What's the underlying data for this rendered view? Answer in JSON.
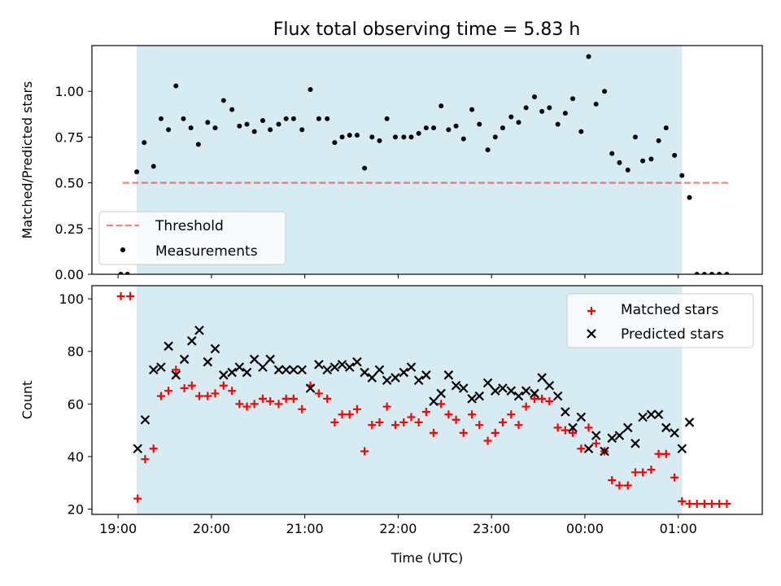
{
  "title": "Flux total observing time = 5.83 h",
  "colors": {
    "shade": "#add8e6",
    "threshold": "#ff0000",
    "matched": "#ff0000",
    "predicted": "#000000",
    "measurements": "#000000"
  },
  "chart_data": [
    {
      "type": "scatter",
      "title": "Flux total observing time = 5.83 h",
      "xlabel": "",
      "ylabel": "Matched/Predicted stars",
      "xlim": [
        18.72,
        25.9
      ],
      "ylim": [
        0,
        1.25
      ],
      "x_ticks": [
        {
          "x": 19,
          "label": "19:00"
        },
        {
          "x": 20,
          "label": "20:00"
        },
        {
          "x": 21,
          "label": "21:00"
        },
        {
          "x": 22,
          "label": "22:00"
        },
        {
          "x": 23,
          "label": "23:00"
        },
        {
          "x": 24,
          "label": "00:00"
        },
        {
          "x": 25,
          "label": "01:00"
        }
      ],
      "y_ticks": [
        {
          "y": 0.0,
          "label": "0.00"
        },
        {
          "y": 0.25,
          "label": "0.25"
        },
        {
          "y": 0.5,
          "label": "0.50"
        },
        {
          "y": 0.75,
          "label": "0.75"
        },
        {
          "y": 1.0,
          "label": "1.00"
        }
      ],
      "shaded_span": [
        19.2,
        25.04
      ],
      "legend_position": "lower-left",
      "series": [
        {
          "name": "Threshold",
          "style": "dashed-line",
          "x": [
            19.05,
            25.55
          ],
          "y": [
            0.5,
            0.5
          ]
        },
        {
          "name": "Measurements",
          "style": "dot",
          "x": [
            19.03,
            19.1,
            19.2,
            19.28,
            19.38,
            19.46,
            19.54,
            19.62,
            19.7,
            19.78,
            19.86,
            19.96,
            20.04,
            20.13,
            20.22,
            20.3,
            20.38,
            20.46,
            20.55,
            20.63,
            20.72,
            20.8,
            20.88,
            20.97,
            21.06,
            21.15,
            21.24,
            21.32,
            21.4,
            21.48,
            21.56,
            21.64,
            21.72,
            21.8,
            21.88,
            21.97,
            22.06,
            22.14,
            22.22,
            22.3,
            22.38,
            22.46,
            22.54,
            22.62,
            22.7,
            22.79,
            22.87,
            22.96,
            23.04,
            23.12,
            23.21,
            23.29,
            23.37,
            23.46,
            23.54,
            23.62,
            23.71,
            23.79,
            23.87,
            23.96,
            24.04,
            24.12,
            24.21,
            24.29,
            24.37,
            24.46,
            24.54,
            24.62,
            24.71,
            24.79,
            24.87,
            24.96,
            25.04,
            25.12,
            25.2,
            25.28,
            25.36,
            25.44,
            25.52
          ],
          "y": [
            0.0,
            0.0,
            0.56,
            0.72,
            0.59,
            0.85,
            0.79,
            1.03,
            0.85,
            0.8,
            0.71,
            0.83,
            0.8,
            0.95,
            0.9,
            0.81,
            0.82,
            0.78,
            0.84,
            0.79,
            0.82,
            0.85,
            0.85,
            0.79,
            1.01,
            0.85,
            0.85,
            0.72,
            0.75,
            0.76,
            0.76,
            0.58,
            0.75,
            0.73,
            0.85,
            0.75,
            0.75,
            0.75,
            0.77,
            0.8,
            0.8,
            0.92,
            0.79,
            0.81,
            0.74,
            0.9,
            0.82,
            0.68,
            0.75,
            0.8,
            0.86,
            0.83,
            0.91,
            0.97,
            0.89,
            0.91,
            0.82,
            0.88,
            0.96,
            0.78,
            1.19,
            0.93,
            1.0,
            0.66,
            0.61,
            0.57,
            0.75,
            0.62,
            0.63,
            0.73,
            0.8,
            0.65,
            0.54,
            0.42,
            0.0,
            0.0,
            0.0,
            0.0,
            0.0
          ]
        }
      ]
    },
    {
      "type": "scatter",
      "title": "",
      "xlabel": "Time (UTC)",
      "ylabel": "Count",
      "xlim": [
        18.72,
        25.9
      ],
      "ylim": [
        18,
        105
      ],
      "x_ticks": [
        {
          "x": 19,
          "label": "19:00"
        },
        {
          "x": 20,
          "label": "20:00"
        },
        {
          "x": 21,
          "label": "21:00"
        },
        {
          "x": 22,
          "label": "22:00"
        },
        {
          "x": 23,
          "label": "23:00"
        },
        {
          "x": 24,
          "label": "00:00"
        },
        {
          "x": 25,
          "label": "01:00"
        }
      ],
      "y_ticks": [
        {
          "y": 20,
          "label": "20"
        },
        {
          "y": 40,
          "label": "40"
        },
        {
          "y": 60,
          "label": "60"
        },
        {
          "y": 80,
          "label": "80"
        },
        {
          "y": 100,
          "label": "100"
        }
      ],
      "shaded_span": [
        19.2,
        25.04
      ],
      "legend_position": "upper-right",
      "series": [
        {
          "name": "Matched stars",
          "style": "plus",
          "x": [
            19.03,
            19.13,
            19.21,
            19.29,
            19.38,
            19.46,
            19.54,
            19.62,
            19.71,
            19.79,
            19.87,
            19.96,
            20.04,
            20.13,
            20.22,
            20.3,
            20.38,
            20.46,
            20.55,
            20.63,
            20.72,
            20.8,
            20.88,
            20.97,
            21.06,
            21.15,
            21.24,
            21.32,
            21.4,
            21.48,
            21.56,
            21.64,
            21.72,
            21.8,
            21.88,
            21.97,
            22.06,
            22.14,
            22.22,
            22.3,
            22.38,
            22.46,
            22.54,
            22.62,
            22.7,
            22.79,
            22.87,
            22.96,
            23.04,
            23.12,
            23.21,
            23.29,
            23.37,
            23.46,
            23.54,
            23.62,
            23.71,
            23.79,
            23.87,
            23.96,
            24.04,
            24.12,
            24.21,
            24.29,
            24.37,
            24.46,
            24.54,
            24.62,
            24.71,
            24.79,
            24.87,
            24.96,
            25.04,
            25.12,
            25.2,
            25.28,
            25.36,
            25.44,
            25.52
          ],
          "y": [
            101,
            101,
            24,
            39,
            43,
            63,
            65,
            73,
            66,
            67,
            63,
            63,
            64,
            67,
            65,
            60,
            59,
            60,
            62,
            61,
            60,
            62,
            62,
            58,
            67,
            64,
            62,
            53,
            56,
            56,
            58,
            42,
            52,
            53,
            59,
            52,
            53,
            55,
            53,
            57,
            49,
            60,
            56,
            54,
            49,
            56,
            52,
            46,
            49,
            53,
            56,
            52,
            59,
            62,
            62,
            61,
            51,
            50,
            49,
            43,
            51,
            45,
            42,
            31,
            29,
            29,
            34,
            34,
            35,
            41,
            41,
            32,
            23,
            22,
            22,
            22,
            22,
            22,
            22
          ]
        },
        {
          "name": "Predicted stars",
          "style": "x",
          "x": [
            19.21,
            19.29,
            19.38,
            19.46,
            19.54,
            19.62,
            19.71,
            19.79,
            19.87,
            19.96,
            20.04,
            20.13,
            20.22,
            20.3,
            20.38,
            20.46,
            20.55,
            20.63,
            20.72,
            20.8,
            20.88,
            20.97,
            21.06,
            21.15,
            21.24,
            21.32,
            21.4,
            21.48,
            21.56,
            21.64,
            21.72,
            21.8,
            21.88,
            21.97,
            22.06,
            22.14,
            22.22,
            22.3,
            22.38,
            22.46,
            22.54,
            22.62,
            22.7,
            22.79,
            22.87,
            22.96,
            23.04,
            23.12,
            23.21,
            23.29,
            23.37,
            23.46,
            23.54,
            23.62,
            23.71,
            23.79,
            23.87,
            23.96,
            24.04,
            24.12,
            24.21,
            24.29,
            24.37,
            24.46,
            24.54,
            24.62,
            24.71,
            24.79,
            24.87,
            24.96,
            25.04,
            25.12
          ],
          "y": [
            43,
            54,
            73,
            74,
            82,
            71,
            77,
            84,
            88,
            76,
            81,
            71,
            72,
            74,
            72,
            77,
            74,
            77,
            73,
            73,
            73,
            73,
            66,
            75,
            73,
            74,
            75,
            74,
            76,
            72,
            70,
            73,
            69,
            70,
            72,
            74,
            69,
            71,
            61,
            64,
            71,
            67,
            66,
            62,
            63,
            68,
            65,
            66,
            65,
            63,
            65,
            64,
            70,
            67,
            63,
            57,
            51,
            55,
            43,
            48,
            42,
            47,
            48,
            51,
            45,
            55,
            56,
            56,
            51,
            49,
            43,
            53
          ]
        }
      ]
    }
  ]
}
